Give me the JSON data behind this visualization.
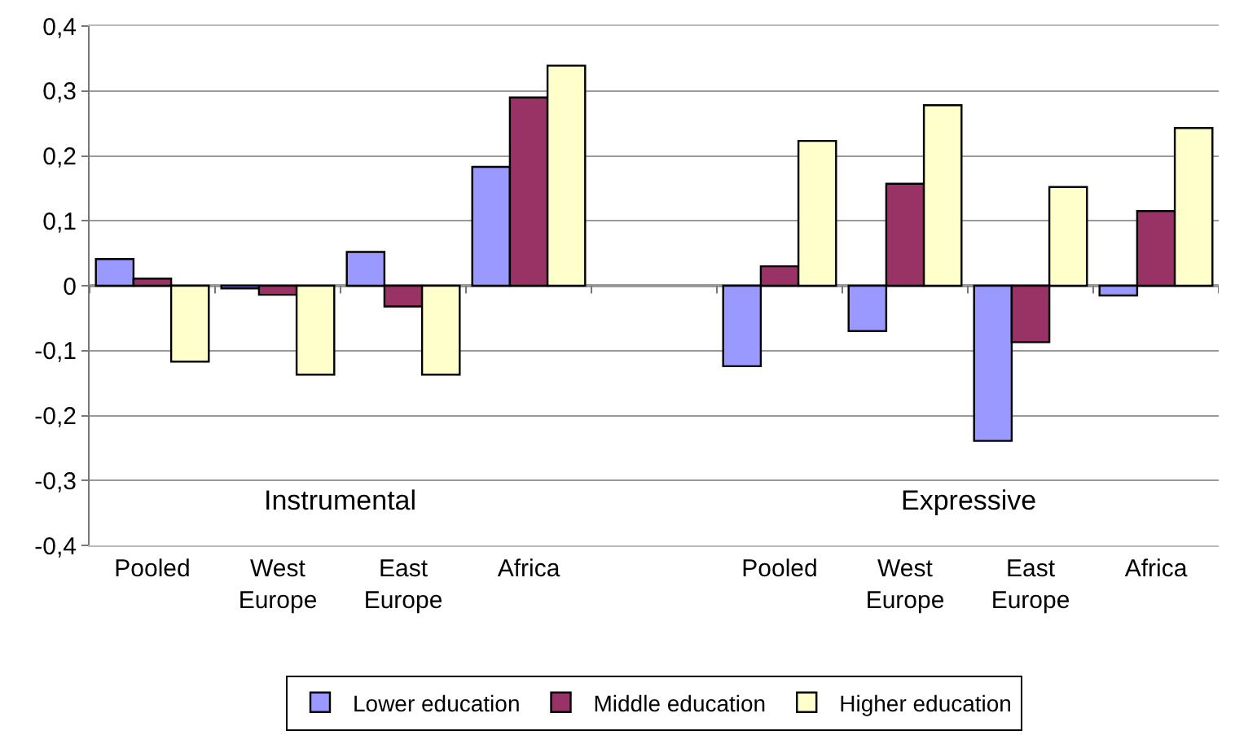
{
  "chart_data": {
    "type": "bar",
    "categories": [
      "Pooled",
      "West Europe",
      "East Europe",
      "Africa",
      null,
      "Pooled",
      "West Europe",
      "East Europe",
      "Africa"
    ],
    "series": [
      {
        "name": "Lower education",
        "color": "#9999ff",
        "values": [
          0.041,
          -0.004,
          0.052,
          0.183,
          null,
          -0.124,
          -0.07,
          -0.239,
          -0.015
        ]
      },
      {
        "name": "Middle education",
        "color": "#993366",
        "values": [
          0.011,
          -0.014,
          -0.032,
          0.29,
          null,
          0.03,
          0.157,
          -0.087,
          0.115
        ]
      },
      {
        "name": "Higher education",
        "color": "#ffffcc",
        "values": [
          -0.117,
          -0.137,
          -0.137,
          0.339,
          null,
          0.223,
          0.278,
          0.152,
          0.243
        ]
      }
    ],
    "annotations": [
      "Instrumental",
      "Expressive"
    ],
    "ylim": [
      -0.4,
      0.4
    ],
    "yticks": [
      {
        "value": -0.4,
        "label": "-0,4"
      },
      {
        "value": -0.3,
        "label": "-0,3"
      },
      {
        "value": -0.2,
        "label": "-0,2"
      },
      {
        "value": -0.1,
        "label": "-0,1"
      },
      0,
      {
        "value": 0.1,
        "label": "0,1"
      },
      {
        "value": 0.2,
        "label": "0,2"
      },
      {
        "value": 0.3,
        "label": "0,3"
      },
      {
        "value": 0.4,
        "label": "0,4"
      }
    ],
    "grid": "y",
    "legend": "bottom"
  }
}
